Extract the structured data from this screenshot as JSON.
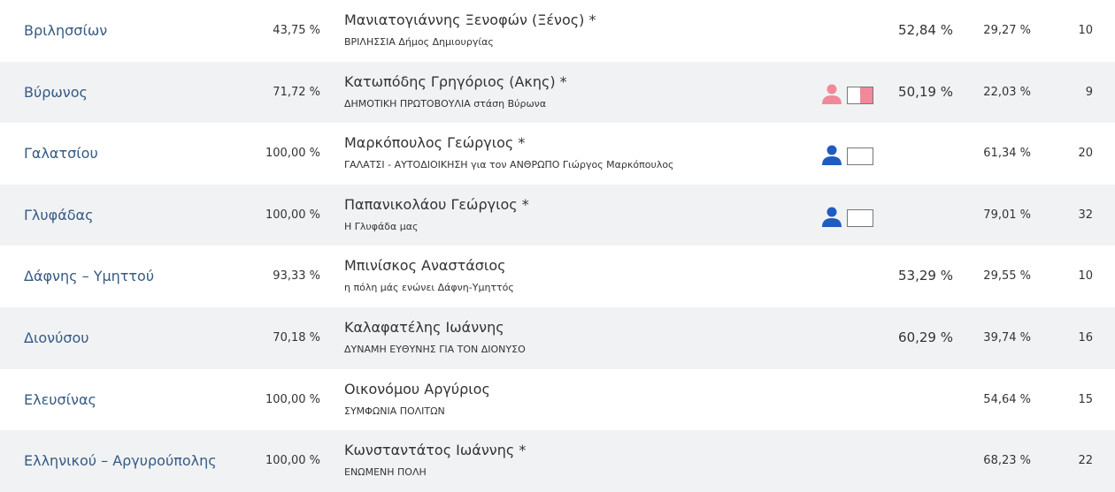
{
  "colors": {
    "link": "#355a84",
    "row_alt": "#f1f2f4",
    "pink": "#f0899a",
    "blue": "#1f5cc0"
  },
  "rows": [
    {
      "municipality": "Βριλησσίων",
      "turnout": "43,75 %",
      "candidate": "Μανιατογιάννης Ξενοφών (Ξένος) *",
      "party": "ΒΡΙΛΗΣΣΙΑ Δήμος Δημιουργίας",
      "icon": null,
      "runoff": "52,84 %",
      "pct": "29,27 %",
      "seats": "10"
    },
    {
      "municipality": "Βύρωνος",
      "turnout": "71,72 %",
      "candidate": "Κατωπόδης Γρηγόριος (Ακης) *",
      "party": "ΔΗΜΟΤΙΚΗ ΠΡΩΤΟΒΟΥΛΙΑ στάση Βύρωνα",
      "icon": "person-icon-pink",
      "runoff": "50,19 %",
      "pct": "22,03 %",
      "seats": "9"
    },
    {
      "municipality": "Γαλατσίου",
      "turnout": "100,00 %",
      "candidate": "Μαρκόπουλος Γεώργιος *",
      "party": "ΓΑΛΑΤΣΙ - ΑΥΤΟΔΙΟΙΚΗΣΗ για τον ΑΝΘΡΩΠΟ Γιώργος Μαρκόπουλος",
      "icon": "person-icon-blue",
      "runoff": "",
      "pct": "61,34 %",
      "seats": "20"
    },
    {
      "municipality": "Γλυφάδας",
      "turnout": "100,00 %",
      "candidate": "Παπανικολάου Γεώργιος *",
      "party": "Η Γλυφάδα μας",
      "icon": "person-icon-blue",
      "runoff": "",
      "pct": "79,01 %",
      "seats": "32"
    },
    {
      "municipality": "Δάφνης – Υμηττού",
      "turnout": "93,33 %",
      "candidate": "Μπινίσκος Αναστάσιος",
      "party": "η πόλη μάς ενώνει Δάφνη-Υμηττός",
      "icon": null,
      "runoff": "53,29 %",
      "pct": "29,55 %",
      "seats": "10"
    },
    {
      "municipality": "Διονύσου",
      "turnout": "70,18 %",
      "candidate": "Καλαφατέλης Ιωάννης",
      "party": "ΔΥΝΑΜΗ ΕΥΘΥΝΗΣ ΓΙΑ ΤΟΝ ΔΙΟΝΥΣΟ",
      "icon": null,
      "runoff": "60,29 %",
      "pct": "39,74 %",
      "seats": "16"
    },
    {
      "municipality": "Ελευσίνας",
      "turnout": "100,00 %",
      "candidate": "Οικονόμου Αργύριος",
      "party": "ΣΥΜΦΩΝΙΑ ΠΟΛΙΤΩΝ",
      "icon": null,
      "runoff": "",
      "pct": "54,64 %",
      "seats": "15"
    },
    {
      "municipality": "Ελληνικού – Αργυρούπολης",
      "turnout": "100,00 %",
      "candidate": "Κωνσταντάτος Ιωάννης *",
      "party": "ΕΝΩΜΕΝΗ ΠΟΛΗ",
      "icon": null,
      "runoff": "",
      "pct": "68,23 %",
      "seats": "22"
    }
  ]
}
